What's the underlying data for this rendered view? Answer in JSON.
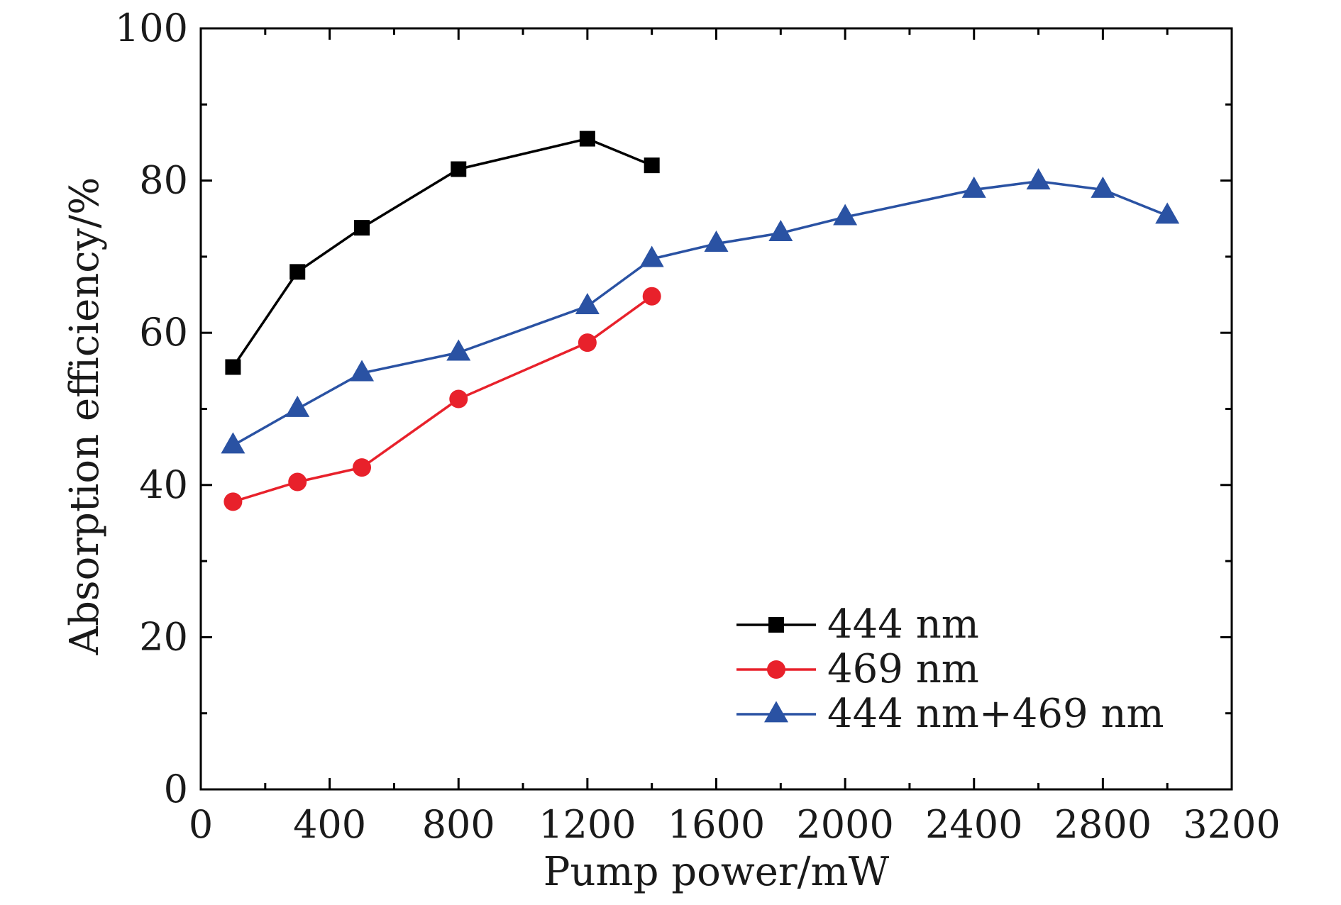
{
  "chart_data": {
    "type": "line",
    "title": "",
    "xlabel": "Pump power/mW",
    "ylabel": "Absorption efficiency/%",
    "xlim": [
      0,
      3200
    ],
    "ylim": [
      0,
      100
    ],
    "x_ticks": [
      0,
      400,
      800,
      1200,
      1600,
      2000,
      2400,
      2800,
      3200
    ],
    "x_minor_ticks": [
      200,
      600,
      1000,
      1400,
      1800,
      2200,
      2600,
      3000
    ],
    "y_ticks": [
      0,
      20,
      40,
      60,
      80,
      100
    ],
    "y_minor_ticks": [
      10,
      30,
      50,
      70,
      90
    ],
    "grid": false,
    "legend_position": "bottom-right",
    "series": [
      {
        "name": "444 nm",
        "color": "#000000",
        "marker": "square",
        "x": [
          100,
          300,
          500,
          800,
          1200,
          1400
        ],
        "y": [
          55.5,
          68.0,
          73.8,
          81.5,
          85.5,
          82.0
        ]
      },
      {
        "name": "469 nm",
        "color": "#e8212b",
        "marker": "circle",
        "x": [
          100,
          300,
          500,
          800,
          1200,
          1400
        ],
        "y": [
          37.8,
          40.4,
          42.3,
          51.3,
          58.7,
          64.8
        ]
      },
      {
        "name": "444 nm+469 nm",
        "color": "#2a52a3",
        "marker": "triangle",
        "x": [
          100,
          300,
          500,
          800,
          1200,
          1400,
          1600,
          1800,
          2000,
          2400,
          2600,
          2800,
          3000
        ],
        "y": [
          45.2,
          50.0,
          54.7,
          57.4,
          63.5,
          69.7,
          71.7,
          73.1,
          75.2,
          78.8,
          79.9,
          78.8,
          75.4
        ]
      }
    ]
  }
}
